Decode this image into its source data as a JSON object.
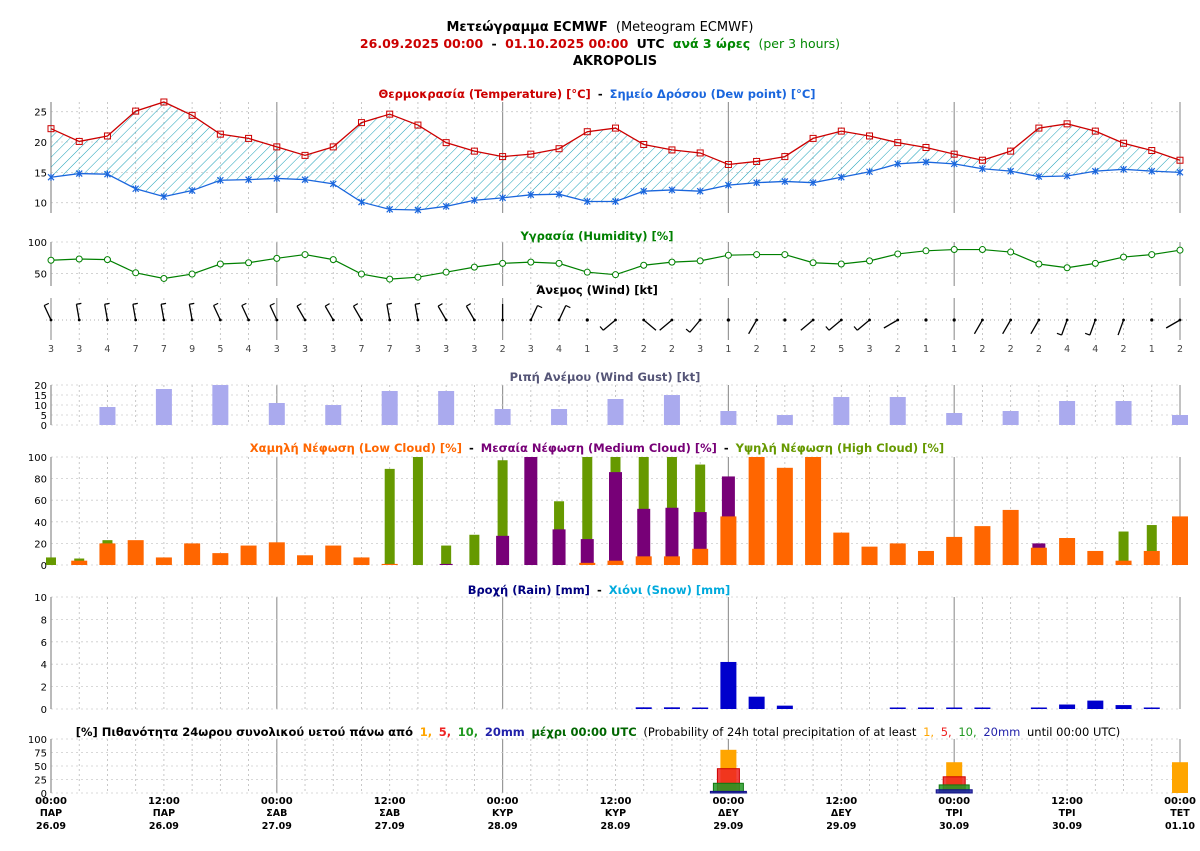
{
  "header": {
    "title_bold": "Μετεώγραμμα ECMWF",
    "title_rest": "(Meteogram ECMWF)",
    "period_from": "26.09.2025 00:00",
    "period_dash": "-",
    "period_to": "01.10.2025 00:00",
    "period_utc": "UTC",
    "period_step": "ανά 3 ώρες",
    "period_step_en": "(per 3 hours)",
    "location": "AKROPOLIS"
  },
  "colors": {
    "temperature": "#cc0000",
    "dewpoint": "#1a66dd",
    "humidity": "#008000",
    "gust": "#aaaaee",
    "gust_title": "#555577",
    "low_cloud": "#ff6600",
    "medium_cloud": "#770077",
    "high_cloud": "#669900",
    "rain": "#0000cc",
    "snow": "#00aadd",
    "prob_1": "#ffa500",
    "prob_5": "#ee2222",
    "prob_10": "#229922",
    "prob_20": "#2222aa"
  },
  "titles": {
    "temp_a": "Θερμοκρασία (Temperature) [°C]",
    "temp_sep": "-",
    "temp_b": "Σημείο Δρόσου (Dew point) [°C]",
    "humidity": "Υγρασία (Humidity) [%]",
    "wind": "Άνεμος (Wind) [kt]",
    "gust": "Ριπή Ανέμου (Wind Gust) [kt]",
    "cloud_low": "Χαμηλή Νέφωση (Low Cloud) [%]",
    "cloud_sep1": "-",
    "cloud_med": "Μεσαία Νέφωση (Medium Cloud) [%]",
    "cloud_sep2": "-",
    "cloud_high": "Υψηλή Νέφωση (High Cloud) [%]",
    "rain": "Βροχή (Rain) [mm]",
    "rain_sep": "-",
    "snow": "Χιόνι (Snow) [mm]",
    "prob_a": "[%] Πιθανότητα 24ωρου συνολικού υετού πάνω από",
    "prob_1": "1,",
    "prob_5": "5,",
    "prob_10": "10,",
    "prob_20": "20mm",
    "prob_b": "μέχρι 00:00 UTC",
    "prob_c": "(Probability of 24h total precipitation of at least",
    "prob_1b": "1,",
    "prob_5b": "5,",
    "prob_10b": "10,",
    "prob_20b": "20mm",
    "prob_d": "until 00:00 UTC)"
  },
  "chart_data": {
    "type": "meteogram",
    "time_axis": {
      "steps": 41,
      "labels": [
        {
          "step": 0,
          "time": "00:00",
          "day": "ΠΑΡ",
          "date": "26.09"
        },
        {
          "step": 4,
          "time": "12:00",
          "day": "ΠΑΡ",
          "date": "26.09"
        },
        {
          "step": 8,
          "time": "00:00",
          "day": "ΣΑΒ",
          "date": "27.09"
        },
        {
          "step": 12,
          "time": "12:00",
          "day": "ΣΑΒ",
          "date": "27.09"
        },
        {
          "step": 16,
          "time": "00:00",
          "day": "ΚΥΡ",
          "date": "28.09"
        },
        {
          "step": 20,
          "time": "12:00",
          "day": "ΚΥΡ",
          "date": "28.09"
        },
        {
          "step": 24,
          "time": "00:00",
          "day": "ΔΕΥ",
          "date": "29.09"
        },
        {
          "step": 28,
          "time": "12:00",
          "day": "ΔΕΥ",
          "date": "29.09"
        },
        {
          "step": 32,
          "time": "00:00",
          "day": "ΤΡΙ",
          "date": "30.09"
        },
        {
          "step": 36,
          "time": "12:00",
          "day": "ΤΡΙ",
          "date": "30.09"
        },
        {
          "step": 40,
          "time": "00:00",
          "day": "ΤΕΤ",
          "date": "01.10"
        }
      ]
    },
    "temperature": [
      22.2,
      20.1,
      21,
      25.1,
      26.6,
      24.4,
      21.3,
      20.6,
      19.2,
      17.8,
      19.2,
      23.2,
      24.6,
      22.8,
      19.9,
      18.5,
      17.6,
      18,
      18.9,
      21.7,
      22.3,
      19.6,
      18.7,
      18.2,
      16.3,
      16.8,
      17.6,
      20.6,
      21.8,
      21,
      19.9,
      19.1,
      18,
      17,
      18.5,
      22.3,
      23,
      21.8,
      19.8,
      18.6,
      17
    ],
    "dewpoint": [
      14.2,
      14.8,
      14.7,
      12.3,
      11,
      12,
      13.7,
      13.8,
      14,
      13.8,
      13.1,
      10.1,
      8.9,
      8.8,
      9.4,
      10.4,
      10.8,
      11.3,
      11.4,
      10.2,
      10.2,
      11.9,
      12.1,
      11.9,
      12.9,
      13.3,
      13.5,
      13.3,
      14.2,
      15.1,
      16.4,
      16.7,
      16.4,
      15.6,
      15.2,
      14.3,
      14.4,
      15.2,
      15.5,
      15.2,
      15
    ],
    "temp_axis": {
      "ticks": [
        10,
        15,
        20,
        25
      ],
      "range": [
        8.3,
        26.6
      ]
    },
    "humidity": [
      71,
      73,
      72,
      51,
      42,
      49,
      65,
      67,
      74,
      80,
      72,
      49,
      41,
      44,
      52,
      60,
      66,
      68,
      66,
      52,
      48,
      63,
      68,
      70,
      79,
      80,
      80,
      67,
      65,
      70,
      81,
      86,
      88,
      88,
      84,
      65,
      59,
      66,
      76,
      80,
      87
    ],
    "humidity_axis": {
      "ticks": [
        50,
        100
      ],
      "range": [
        30,
        100
      ]
    },
    "wind_speed": [
      3,
      3,
      4,
      7,
      7,
      9,
      5,
      4,
      3,
      3,
      3,
      7,
      7,
      3,
      3,
      3,
      2,
      3,
      4,
      1,
      3,
      2,
      2,
      3,
      1,
      2,
      1,
      2,
      5,
      3,
      2,
      1,
      1,
      2,
      2,
      2,
      4,
      4,
      2,
      1,
      2
    ],
    "gust": [
      null,
      null,
      9,
      null,
      18,
      null,
      20,
      null,
      11,
      null,
      10,
      null,
      17,
      null,
      17,
      null,
      8,
      null,
      8,
      null,
      13,
      null,
      15,
      null,
      7,
      null,
      5,
      null,
      14,
      null,
      14,
      null,
      6,
      null,
      7,
      null,
      12,
      null,
      12,
      null,
      5
    ],
    "gust_axis": {
      "ticks": [
        0,
        5,
        10,
        15,
        20
      ],
      "range": [
        0,
        20
      ]
    },
    "low_cloud": [
      0,
      4,
      20,
      23,
      7,
      20,
      11,
      18,
      21,
      9,
      18,
      7,
      1,
      0,
      0,
      0,
      0,
      0,
      0,
      2,
      4,
      8,
      8,
      15,
      45,
      100,
      90,
      100,
      30,
      17,
      20,
      13,
      26,
      36,
      51,
      16,
      25,
      13,
      4,
      13,
      45
    ],
    "medium_cloud": [
      0,
      0,
      0,
      0,
      0,
      0,
      0,
      0,
      0,
      0,
      0,
      0,
      0,
      0,
      1,
      0,
      27,
      100,
      33,
      24,
      86,
      52,
      53,
      49,
      82,
      0,
      0,
      0,
      0,
      0,
      0,
      0,
      0,
      0,
      0,
      20,
      0,
      0,
      0,
      0,
      0
    ],
    "high_cloud": [
      7,
      6,
      23,
      0,
      0,
      0,
      0,
      0,
      0,
      0,
      0,
      0,
      89,
      100,
      18,
      28,
      97,
      0,
      59,
      100,
      100,
      100,
      100,
      93,
      0,
      0,
      0,
      0,
      0,
      0,
      0,
      0,
      0,
      0,
      0,
      0,
      0,
      0,
      31,
      37,
      0
    ],
    "cloud_axis": {
      "ticks": [
        0,
        20,
        40,
        60,
        80,
        100
      ],
      "range": [
        0,
        100
      ]
    },
    "rain": [
      0,
      0,
      0,
      0,
      0,
      0,
      0,
      0,
      0,
      0,
      0,
      0,
      0,
      0,
      0,
      0,
      0,
      0,
      0,
      0,
      0,
      0.15,
      0.15,
      0.1,
      4.2,
      1.1,
      0.3,
      0,
      0,
      0,
      0.05,
      0.05,
      0.05,
      0.05,
      0,
      0.05,
      0.4,
      0.75,
      0.35,
      0.05,
      0
    ],
    "snow": [],
    "rain_axis": {
      "ticks": [
        0,
        2,
        4,
        6,
        8,
        10
      ],
      "range": [
        0,
        10
      ]
    },
    "prob_axis": {
      "ticks": [
        0,
        25,
        50,
        75,
        100
      ],
      "range": [
        0,
        100
      ]
    },
    "probability": [
      {
        "step": 24,
        "p1": 80,
        "p5": 45,
        "p10": 18,
        "p20": 3
      },
      {
        "step": 32,
        "p1": 57,
        "p5": 30,
        "p10": 15,
        "p20": 6
      },
      {
        "step": 40,
        "p1": 57,
        "p5": 0,
        "p10": 0,
        "p20": 0
      }
    ]
  }
}
